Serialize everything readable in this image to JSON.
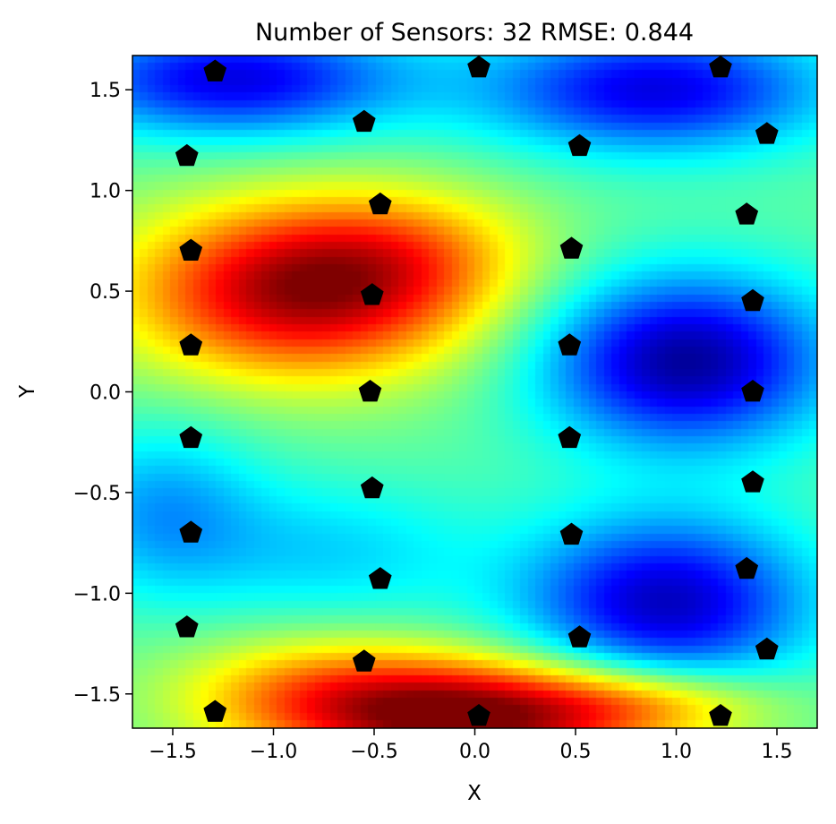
{
  "chart_data": {
    "type": "heatmap",
    "title": "Number of Sensors: 32    RMSE: 0.844",
    "xlabel": "X",
    "ylabel": "Y",
    "xlim": [
      -1.7,
      1.7
    ],
    "ylim": [
      -1.67,
      1.67
    ],
    "xticks": [
      -1.5,
      -1.0,
      -0.5,
      0.0,
      0.5,
      1.0,
      1.5
    ],
    "xtick_labels": [
      "−1.5",
      "−1.0",
      "−0.5",
      "0.0",
      "0.5",
      "1.0",
      "1.5"
    ],
    "yticks": [
      1.5,
      1.0,
      0.5,
      0.0,
      -0.5,
      -1.0,
      -1.5
    ],
    "ytick_labels": [
      "1.5",
      "1.0",
      "0.5",
      "0.0",
      "−0.5",
      "−1.0",
      "−1.5"
    ],
    "colormap": "jet",
    "grid": false,
    "field_blobs": [
      {
        "x": -0.85,
        "y": 0.5,
        "sx": 0.6,
        "sy": 0.3,
        "amp": 1.35
      },
      {
        "x": -0.3,
        "y": 0.7,
        "sx": 0.45,
        "sy": 0.22,
        "amp": 0.35
      },
      {
        "x": 0.0,
        "y": -1.62,
        "sx": 0.6,
        "sy": 0.2,
        "amp": 1.4
      },
      {
        "x": -0.8,
        "y": -1.5,
        "sx": 0.5,
        "sy": 0.2,
        "amp": 0.6
      },
      {
        "x": 0.9,
        "y": -1.55,
        "sx": 0.45,
        "sy": 0.13,
        "amp": 0.5
      },
      {
        "x": 1.05,
        "y": 0.15,
        "sx": 0.5,
        "sy": 0.3,
        "amp": -1.2
      },
      {
        "x": 0.95,
        "y": -1.05,
        "sx": 0.5,
        "sy": 0.3,
        "amp": -1.1
      },
      {
        "x": -1.2,
        "y": 1.55,
        "sx": 0.6,
        "sy": 0.2,
        "amp": -1.0
      },
      {
        "x": 0.9,
        "y": 1.5,
        "sx": 0.6,
        "sy": 0.22,
        "amp": -1.0
      },
      {
        "x": -1.55,
        "y": -0.6,
        "sx": 0.35,
        "sy": 0.3,
        "amp": -0.5
      },
      {
        "x": -0.7,
        "y": -0.8,
        "sx": 0.5,
        "sy": 0.25,
        "amp": -0.35
      }
    ],
    "sensors": [
      {
        "x": -1.29,
        "y": 1.59
      },
      {
        "x": 0.02,
        "y": 1.61
      },
      {
        "x": 1.22,
        "y": 1.61
      },
      {
        "x": -0.55,
        "y": 1.34
      },
      {
        "x": 1.45,
        "y": 1.28
      },
      {
        "x": -1.43,
        "y": 1.17
      },
      {
        "x": 0.52,
        "y": 1.22
      },
      {
        "x": -0.47,
        "y": 0.93
      },
      {
        "x": 1.35,
        "y": 0.88
      },
      {
        "x": -1.41,
        "y": 0.7
      },
      {
        "x": 0.48,
        "y": 0.71
      },
      {
        "x": -0.51,
        "y": 0.48
      },
      {
        "x": 1.38,
        "y": 0.45
      },
      {
        "x": -1.41,
        "y": 0.23
      },
      {
        "x": 0.47,
        "y": 0.23
      },
      {
        "x": -0.52,
        "y": 0.0
      },
      {
        "x": 1.38,
        "y": 0.0
      },
      {
        "x": -1.41,
        "y": -0.23
      },
      {
        "x": 0.47,
        "y": -0.23
      },
      {
        "x": -0.51,
        "y": -0.48
      },
      {
        "x": 1.38,
        "y": -0.45
      },
      {
        "x": -1.41,
        "y": -0.7
      },
      {
        "x": 0.48,
        "y": -0.71
      },
      {
        "x": -0.47,
        "y": -0.93
      },
      {
        "x": 1.35,
        "y": -0.88
      },
      {
        "x": -1.43,
        "y": -1.17
      },
      {
        "x": 0.52,
        "y": -1.22
      },
      {
        "x": -0.55,
        "y": -1.34
      },
      {
        "x": 1.45,
        "y": -1.28
      },
      {
        "x": -1.29,
        "y": -1.59
      },
      {
        "x": 0.02,
        "y": -1.61
      },
      {
        "x": 1.22,
        "y": -1.61
      }
    ],
    "marker_color": "#000000"
  }
}
